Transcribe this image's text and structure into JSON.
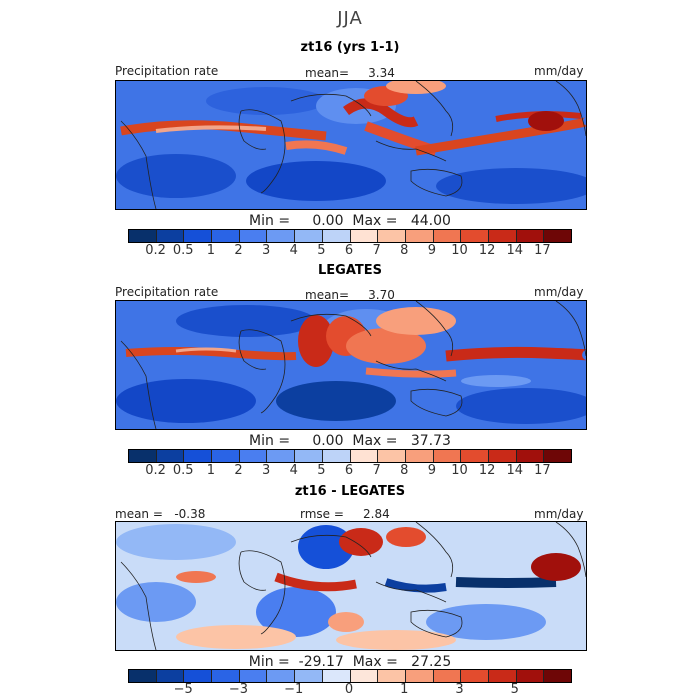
{
  "header": {
    "season": "JJA"
  },
  "panels": [
    {
      "title": "zt16 (yrs 1-1)",
      "left_label": "Precipitation rate",
      "center_label": "mean=     3.34",
      "right_label": "mm/day",
      "range_text": "Min =     0.00  Max =   44.00",
      "colorbar": {
        "ticks": [
          "0.2",
          "0.5",
          "1",
          "2",
          "3",
          "4",
          "5",
          "6",
          "7",
          "8",
          "9",
          "10",
          "12",
          "14",
          "17"
        ],
        "colors": [
          "#08306b",
          "#0c3fa0",
          "#1550d8",
          "#2a64e6",
          "#4a7ef0",
          "#6c9af3",
          "#93b8f6",
          "#bdd3f8",
          "#ffe2d3",
          "#fcc4a6",
          "#f89f7c",
          "#f07652",
          "#e34c2e",
          "#c92a18",
          "#a1100c",
          "#6e0606"
        ]
      }
    },
    {
      "title": "LEGATES",
      "left_label": "Precipitation rate",
      "center_label": "mean=     3.70",
      "right_label": "mm/day",
      "range_text": "Min =     0.00  Max =   37.73",
      "colorbar": {
        "ticks": [
          "0.2",
          "0.5",
          "1",
          "2",
          "3",
          "4",
          "5",
          "6",
          "7",
          "8",
          "9",
          "10",
          "12",
          "14",
          "17"
        ],
        "colors": [
          "#08306b",
          "#0c3fa0",
          "#1550d8",
          "#2a64e6",
          "#4a7ef0",
          "#6c9af3",
          "#93b8f6",
          "#bdd3f8",
          "#ffe2d3",
          "#fcc4a6",
          "#f89f7c",
          "#f07652",
          "#e34c2e",
          "#c92a18",
          "#a1100c",
          "#6e0606"
        ]
      }
    },
    {
      "title": "zt16 - LEGATES",
      "left_label": "mean =   -0.38",
      "center_label": "rmse =     2.84",
      "right_label": "mm/day",
      "range_text": "Min =  -29.17  Max =   27.25",
      "colorbar": {
        "ticks": [
          "−5",
          "−3",
          "−1",
          "0",
          "1",
          "3",
          "5"
        ],
        "colors": [
          "#08306b",
          "#0c3fa0",
          "#1550d8",
          "#2a64e6",
          "#4a7ef0",
          "#6c9af3",
          "#93b8f6",
          "#dbe7fb",
          "#fde6da",
          "#fcc4a6",
          "#f89f7c",
          "#f07652",
          "#e34c2e",
          "#c92a18",
          "#a1100c",
          "#6e0606"
        ]
      }
    }
  ]
}
